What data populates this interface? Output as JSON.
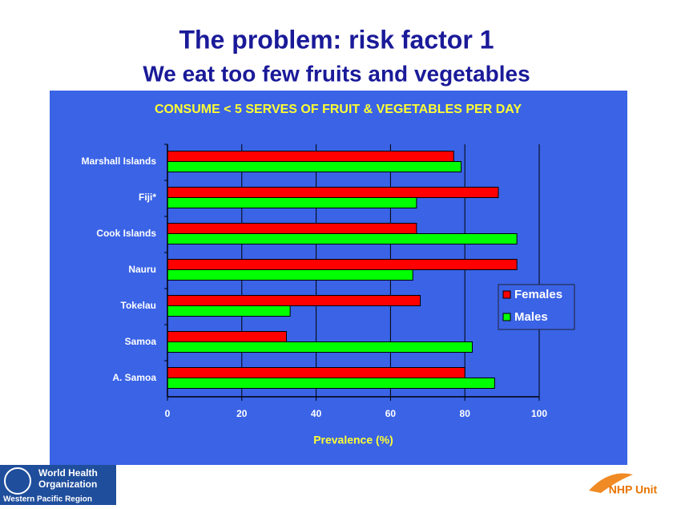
{
  "slide": {
    "title": "The problem: risk factor 1",
    "subtitle": "We eat too few fruits and vegetables",
    "logo_left": [
      "World Health",
      "Organization",
      "Western Pacific Region"
    ],
    "logo_right": "NHP Unit"
  },
  "chart_data": {
    "type": "hbar",
    "title": "CONSUME < 5 SERVES OF FRUIT & VEGETABLES PER DAY",
    "x_label": "Prevalence (%)",
    "categories": [
      "Marshall Islands",
      "Fiji*",
      "Cook Islands",
      "Nauru",
      "Tokelau",
      "Samoa",
      "A. Samoa"
    ],
    "series": [
      {
        "name": "Females",
        "color": "#ff0000",
        "values": [
          77,
          89,
          67,
          94,
          68,
          32,
          80
        ]
      },
      {
        "name": "Males",
        "color": "#00ff00",
        "values": [
          79,
          67,
          94,
          66,
          33,
          82,
          88
        ]
      }
    ],
    "xlim": [
      0,
      100
    ],
    "xticks": [
      0,
      20,
      40,
      60,
      80,
      100
    ],
    "grid": true,
    "legend": "right"
  }
}
